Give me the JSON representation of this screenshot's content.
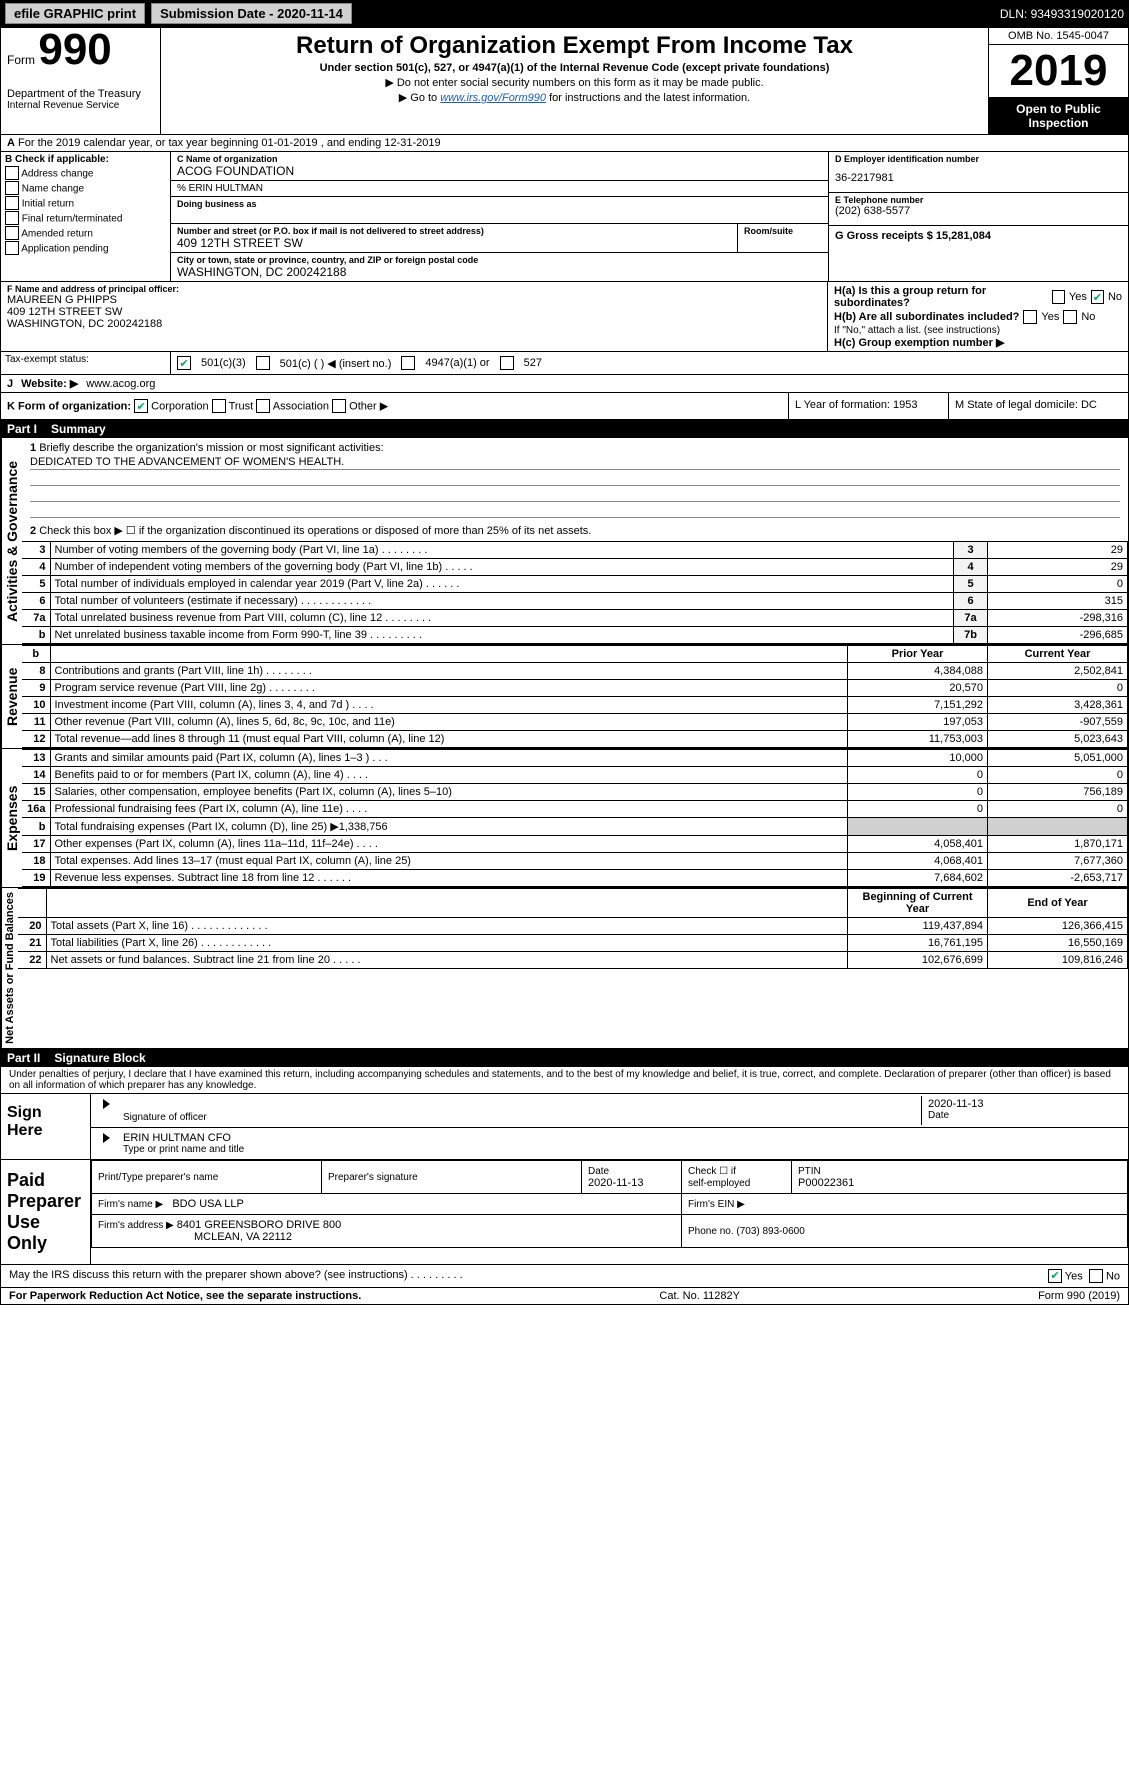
{
  "topbar": {
    "efile_label": "efile GRAPHIC print",
    "submission_label": "Submission Date - 2020-11-14",
    "dln_label": "DLN: 93493319020120"
  },
  "header": {
    "form_prefix": "Form",
    "form_number": "990",
    "title": "Return of Organization Exempt From Income Tax",
    "subtitle": "Under section 501(c), 527, or 4947(a)(1) of the Internal Revenue Code (except private foundations)",
    "note1": "▶ Do not enter social security numbers on this form as it may be made public.",
    "note2_prefix": "▶ Go to ",
    "note2_link": "www.irs.gov/Form990",
    "note2_suffix": " for instructions and the latest information.",
    "dept1": "Department of the Treasury",
    "dept2": "Internal Revenue Service",
    "omb": "OMB No. 1545-0047",
    "year": "2019",
    "open_public1": "Open to Public",
    "open_public2": "Inspection"
  },
  "row_a": {
    "label_a": "A",
    "text": "For the 2019 calendar year, or tax year beginning 01-01-2019   , and ending 12-31-2019"
  },
  "section_b": {
    "header": "B Check if applicable:",
    "items": [
      "Address change",
      "Name change",
      "Initial return",
      "Final return/terminated",
      "Amended return",
      "Application pending"
    ],
    "header_C_label": "C Name of organization",
    "org_name": "ACOG FOUNDATION",
    "care_of_label": "% ERIN HULTMAN",
    "dba_label": "Doing business as",
    "addr_label": "Number and street (or P.O. box if mail is not delivered to street address)",
    "room_label": "Room/suite",
    "addr": "409 12TH STREET SW",
    "city_label": "City or town, state or province, country, and ZIP or foreign postal code",
    "city": "WASHINGTON, DC  200242188",
    "header_D_label": "D Employer identification number",
    "ein": "36-2217981",
    "header_E_label": "E Telephone number",
    "phone": "(202) 638-5577",
    "header_G_label": "G Gross receipts $ 15,281,084",
    "header_F_label": "F  Name and address of principal officer:",
    "officer_name": "MAUREEN G PHIPPS",
    "officer_addr1": "409 12TH STREET SW",
    "officer_addr2": "WASHINGTON, DC  200242188",
    "h_a": "H(a)  Is this a group return for subordinates?",
    "h_a_yes": "Yes",
    "h_a_no": "No",
    "h_b": "H(b)  Are all subordinates included?",
    "h_b_note": "If \"No,\" attach a list. (see instructions)",
    "h_c": "H(c)  Group exemption number ▶"
  },
  "tax_status": {
    "label": "Tax-exempt status:",
    "opt1": "501(c)(3)",
    "opt2": "501(c) (  ) ◀ (insert no.)",
    "opt3": "4947(a)(1) or",
    "opt4": "527"
  },
  "website": {
    "label_j": "J",
    "label": "Website: ▶",
    "url": "www.acog.org"
  },
  "kform": {
    "label": "K Form of organization:",
    "corp": "Corporation",
    "trust": "Trust",
    "assoc": "Association",
    "other": "Other ▶",
    "l_label": "L Year of formation: 1953",
    "m_label": "M State of legal domicile: DC"
  },
  "part1": {
    "header_num": "Part I",
    "header_title": "Summary"
  },
  "summary": {
    "q1_label": "1",
    "q1_text": "Briefly describe the organization's mission or most significant activities:",
    "q1_answer": "DEDICATED TO THE ADVANCEMENT OF WOMEN'S HEALTH.",
    "q2_label": "2",
    "q2_text": "Check this box ▶ ☐  if the organization discontinued its operations or disposed of more than 25% of its net assets."
  },
  "activities_lines": [
    {
      "n": "3",
      "desc": "Number of voting members of the governing body (Part VI, line 1a)  .    .    .    .    .    .    .    .",
      "ln": "3",
      "v": "29"
    },
    {
      "n": "4",
      "desc": "Number of independent voting members of the governing body (Part VI, line 1b)   .    .    .    .    .",
      "ln": "4",
      "v": "29"
    },
    {
      "n": "5",
      "desc": "Total number of individuals employed in calendar year 2019 (Part V, line 2a)   .    .    .    .    .    .",
      "ln": "5",
      "v": "0"
    },
    {
      "n": "6",
      "desc": "Total number of volunteers (estimate if necessary)    .    .    .    .    .    .    .    .    .    .    .    .",
      "ln": "6",
      "v": "315"
    },
    {
      "n": "7a",
      "desc": "Total unrelated business revenue from Part VIII, column (C), line 12   .    .    .    .    .    .    .    .",
      "ln": "7a",
      "v": "-298,316"
    },
    {
      "n": "b",
      "desc": "Net unrelated business taxable income from Form 990-T, line 39    .    .    .    .    .    .    .    .    .",
      "ln": "7b",
      "v": "-296,685"
    }
  ],
  "rev_header": {
    "b": "b",
    "prior": "Prior Year",
    "current": "Current Year"
  },
  "revenue_lines": [
    {
      "n": "8",
      "desc": "Contributions and grants (Part VIII, line 1h)   .    .    .    .    .    .    .    .",
      "p": "4,384,088",
      "c": "2,502,841"
    },
    {
      "n": "9",
      "desc": "Program service revenue (Part VIII, line 2g)   .    .    .    .    .    .    .    .",
      "p": "20,570",
      "c": "0"
    },
    {
      "n": "10",
      "desc": "Investment income (Part VIII, column (A), lines 3, 4, and 7d )   .    .    .    .",
      "p": "7,151,292",
      "c": "3,428,361"
    },
    {
      "n": "11",
      "desc": "Other revenue (Part VIII, column (A), lines 5, 6d, 8c, 9c, 10c, and 11e)",
      "p": "197,053",
      "c": "-907,559"
    },
    {
      "n": "12",
      "desc": "Total revenue—add lines 8 through 11 (must equal Part VIII, column (A), line 12)",
      "p": "11,753,003",
      "c": "5,023,643"
    }
  ],
  "expense_lines": [
    {
      "n": "13",
      "desc": "Grants and similar amounts paid (Part IX, column (A), lines 1–3 )   .    .    .",
      "p": "10,000",
      "c": "5,051,000"
    },
    {
      "n": "14",
      "desc": "Benefits paid to or for members (Part IX, column (A), line 4)   .    .    .    .",
      "p": "0",
      "c": "0"
    },
    {
      "n": "15",
      "desc": "Salaries, other compensation, employee benefits (Part IX, column (A), lines 5–10)",
      "p": "0",
      "c": "756,189"
    },
    {
      "n": "16a",
      "desc": "Professional fundraising fees (Part IX, column (A), line 11e)   .    .    .    .",
      "p": "0",
      "c": "0"
    },
    {
      "n": "b",
      "desc": "Total fundraising expenses (Part IX, column (D), line 25) ▶1,338,756",
      "p": "",
      "c": "",
      "shaded": true
    },
    {
      "n": "17",
      "desc": "Other expenses (Part IX, column (A), lines 11a–11d, 11f–24e)   .    .    .    .",
      "p": "4,058,401",
      "c": "1,870,171"
    },
    {
      "n": "18",
      "desc": "Total expenses. Add lines 13–17 (must equal Part IX, column (A), line 25)",
      "p": "4,068,401",
      "c": "7,677,360"
    },
    {
      "n": "19",
      "desc": "Revenue less expenses. Subtract line 18 from line 12   .    .    .    .    .    .",
      "p": "7,684,602",
      "c": "-2,653,717"
    }
  ],
  "net_header": {
    "begin": "Beginning of Current Year",
    "end": "End of Year"
  },
  "net_lines": [
    {
      "n": "20",
      "desc": "Total assets (Part X, line 16)   .    .    .    .    .    .    .    .    .    .    .    .    .",
      "p": "119,437,894",
      "c": "126,366,415"
    },
    {
      "n": "21",
      "desc": "Total liabilities (Part X, line 26)   .    .    .    .    .    .    .    .    .    .    .    .",
      "p": "16,761,195",
      "c": "16,550,169"
    },
    {
      "n": "22",
      "desc": "Net assets or fund balances. Subtract line 21 from line 20   .    .    .    .    .",
      "p": "102,676,699",
      "c": "109,816,246"
    }
  ],
  "part2": {
    "header_num": "Part II",
    "header_title": "Signature Block"
  },
  "declaration": "Under penalties of perjury, I declare that I have examined this return, including accompanying schedules and statements, and to the best of my knowledge and belief, it is true, correct, and complete. Declaration of preparer (other than officer) is based on all information of which preparer has any knowledge.",
  "sign": {
    "label1": "Sign",
    "label2": "Here",
    "sig_label": "Signature of officer",
    "date": "2020-11-13",
    "date_label": "Date",
    "name": "ERIN HULTMAN  CFO",
    "name_label": "Type or print name and title"
  },
  "paid": {
    "label1": "Paid",
    "label2": "Preparer",
    "label3": "Use Only",
    "h1": "Print/Type preparer's name",
    "h2": "Preparer's signature",
    "h3": "Date",
    "h3v": "2020-11-13",
    "h4a": "Check ☐ if",
    "h4b": "self-employed",
    "h5": "PTIN",
    "h5v": "P00022361",
    "firm_name_label": "Firm's name    ▶",
    "firm_name": "BDO USA LLP",
    "firm_ein_label": "Firm's EIN ▶",
    "firm_addr_label": "Firm's address ▶",
    "firm_addr1": "8401 GREENSBORO DRIVE 800",
    "firm_addr2": "MCLEAN, VA  22112",
    "phone_label": "Phone no. (703) 893-0600"
  },
  "discuss": {
    "text": "May the IRS discuss this return with the preparer shown above? (see instructions)    .    .    .    .    .    .    .    .    .",
    "yes": "Yes",
    "no": "No"
  },
  "footer": {
    "pra": "For Paperwork Reduction Act Notice, see the separate instructions.",
    "cat": "Cat. No. 11282Y",
    "form": "Form 990 (2019)"
  },
  "sidelabels": {
    "activities": "Activities & Governance",
    "revenue": "Revenue",
    "expenses": "Expenses",
    "net": "Net Assets or Fund Balances"
  }
}
